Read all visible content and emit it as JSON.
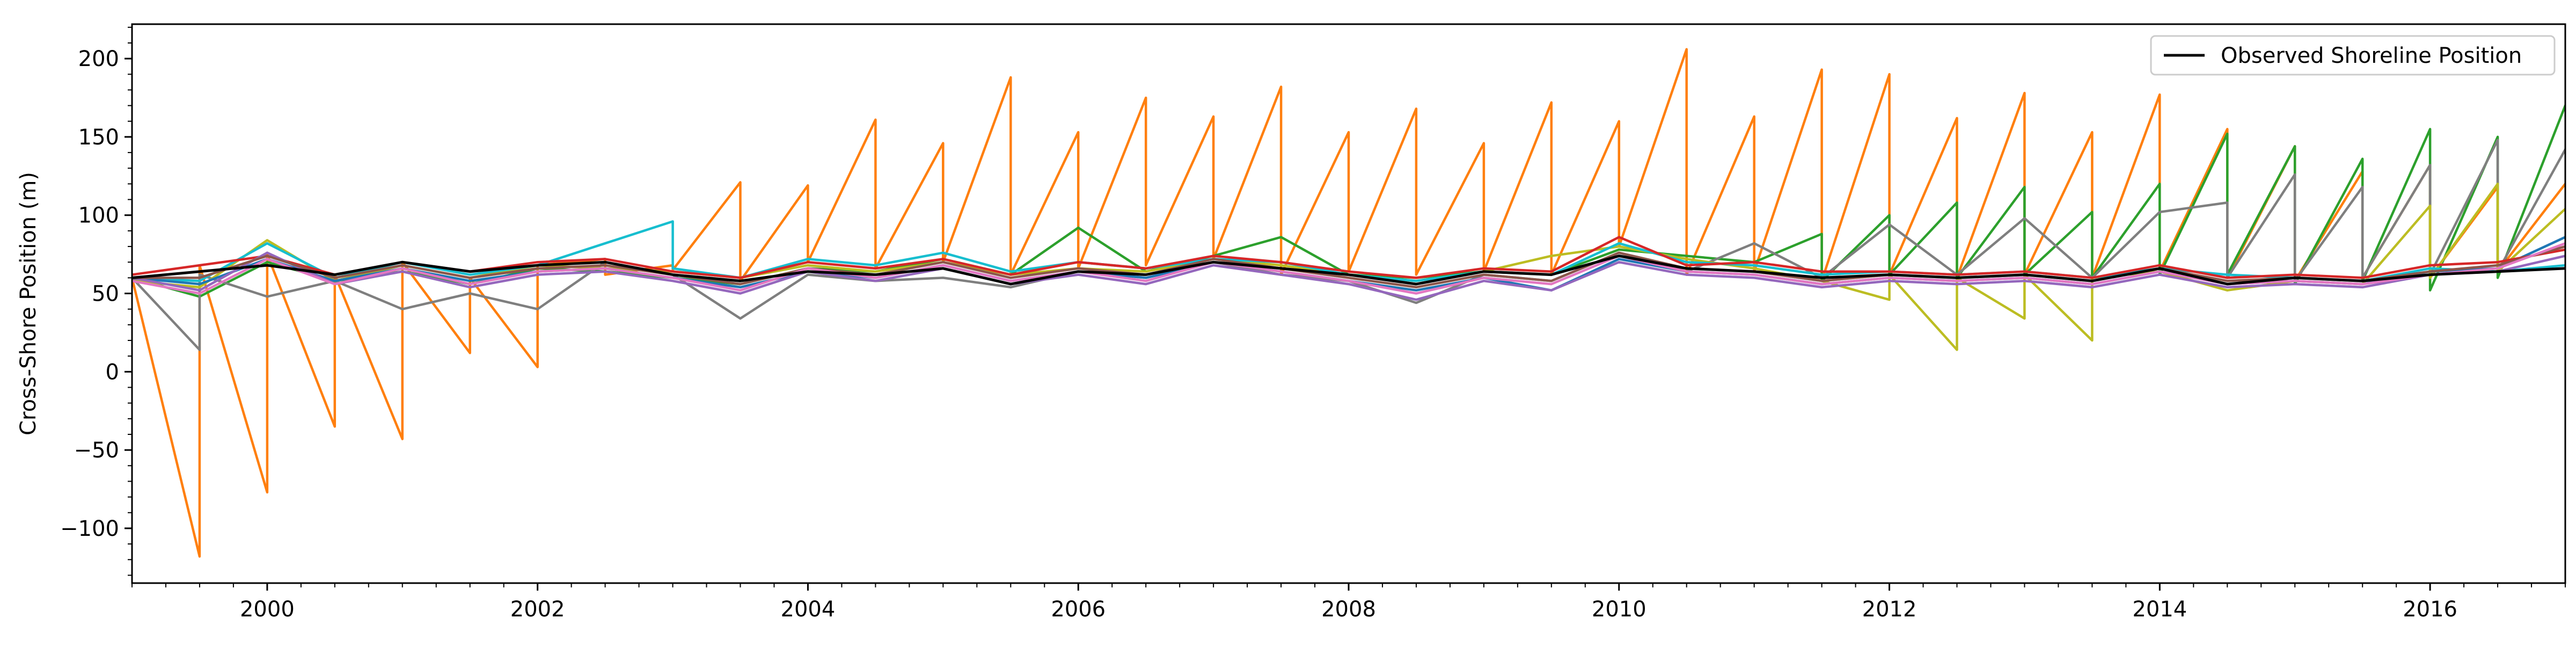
{
  "chart_data": {
    "type": "line",
    "title": "",
    "xlabel": "",
    "ylabel": "Cross-Shore Position (m)",
    "xlim": [
      1999.0,
      2017.0
    ],
    "ylim": [
      -135,
      222
    ],
    "x_ticks": [
      2000,
      2002,
      2004,
      2006,
      2008,
      2010,
      2012,
      2014,
      2016
    ],
    "x_tick_labels": [
      "2000",
      "2002",
      "2004",
      "2006",
      "2008",
      "2010",
      "2012",
      "2014",
      "2016"
    ],
    "y_ticks": [
      -100,
      -50,
      0,
      50,
      100,
      150,
      200
    ],
    "y_tick_labels": [
      "−100",
      "−50",
      "0",
      "50",
      "100",
      "150",
      "200"
    ],
    "grid": false,
    "legend_position": "top-right",
    "legend": [
      {
        "label": "Observed Shoreline Position",
        "color": "#000000"
      }
    ],
    "series": [
      {
        "name": "Observed Shoreline Position",
        "color": "#000000",
        "x": [
          1999.0,
          1999.5,
          2000.0,
          2000.5,
          2001.0,
          2001.5,
          2002.0,
          2002.5,
          2003.0,
          2003.5,
          2004.0,
          2004.5,
          2005.0,
          2005.5,
          2006.0,
          2006.5,
          2007.0,
          2007.5,
          2008.0,
          2008.5,
          2009.0,
          2009.5,
          2010.0,
          2010.5,
          2011.0,
          2011.5,
          2012.0,
          2012.5,
          2013.0,
          2013.5,
          2014.0,
          2014.5,
          2015.0,
          2015.5,
          2016.0,
          2016.5,
          2017.0
        ],
        "y": [
          60,
          64,
          68,
          62,
          70,
          64,
          68,
          70,
          62,
          58,
          64,
          62,
          66,
          56,
          64,
          62,
          70,
          66,
          62,
          56,
          64,
          62,
          74,
          66,
          64,
          60,
          62,
          60,
          62,
          58,
          66,
          56,
          60,
          58,
          62,
          64,
          66
        ]
      },
      {
        "name": "",
        "color": "#ff7f0e",
        "x": [
          1999.0,
          1999.5,
          1999.5,
          2000.0,
          2000.0,
          2000.5,
          2000.5,
          2001.0,
          2001.0,
          2001.5,
          2001.5,
          2002.0,
          2002.0,
          2002.5,
          2002.5,
          2003.0,
          2003.0,
          2003.5,
          2003.5,
          2004.0,
          2004.0,
          2004.5,
          2004.5,
          2005.0,
          2005.0,
          2005.5,
          2005.5,
          2006.0,
          2006.0,
          2006.5,
          2006.5,
          2007.0,
          2007.0,
          2007.5,
          2007.5,
          2008.0,
          2008.0,
          2008.5,
          2008.5,
          2009.0,
          2009.0,
          2009.5,
          2009.5,
          2010.0,
          2010.0,
          2010.5,
          2010.5,
          2011.0,
          2011.0,
          2011.5,
          2011.5,
          2012.0,
          2012.0,
          2012.5,
          2012.5,
          2013.0,
          2013.0,
          2013.5,
          2013.5,
          2014.0,
          2014.0,
          2014.5,
          2014.5,
          2015.0,
          2015.0,
          2015.5,
          2015.5,
          2016.0,
          2016.0,
          2016.5,
          2016.5,
          2017.0
        ],
        "y": [
          60,
          -118,
          68,
          -77,
          75,
          -35,
          62,
          -43,
          70,
          12,
          60,
          3,
          68,
          72,
          62,
          68,
          65,
          121,
          58,
          119,
          70,
          161,
          66,
          146,
          70,
          188,
          62,
          153,
          66,
          175,
          68,
          163,
          72,
          182,
          62,
          153,
          64,
          168,
          62,
          146,
          64,
          172,
          62,
          160,
          80,
          206,
          62,
          163,
          64,
          193,
          58,
          190,
          62,
          162,
          60,
          178,
          62,
          153,
          60,
          177,
          64,
          155,
          60,
          144,
          58,
          128,
          60,
          132,
          60,
          118,
          64,
          120
        ]
      },
      {
        "name": "",
        "color": "#2ca02c",
        "x": [
          1999.0,
          1999.5,
          2000.0,
          2000.5,
          2001.0,
          2001.5,
          2002.0,
          2002.5,
          2003.0,
          2003.5,
          2004.0,
          2004.5,
          2005.0,
          2005.5,
          2006.0,
          2006.5,
          2007.0,
          2007.5,
          2008.0,
          2008.5,
          2009.0,
          2009.5,
          2010.0,
          2010.5,
          2011.0,
          2011.5,
          2011.5,
          2012.0,
          2012.0,
          2012.5,
          2012.5,
          2013.0,
          2013.0,
          2013.5,
          2013.5,
          2014.0,
          2014.0,
          2014.5,
          2014.5,
          2015.0,
          2015.0,
          2015.5,
          2015.5,
          2016.0,
          2016.0,
          2016.5,
          2016.5,
          2017.0
        ],
        "y": [
          60,
          48,
          70,
          58,
          64,
          56,
          66,
          64,
          60,
          56,
          66,
          64,
          72,
          62,
          92,
          64,
          74,
          86,
          62,
          60,
          64,
          62,
          78,
          74,
          70,
          88,
          58,
          100,
          62,
          108,
          60,
          118,
          62,
          102,
          60,
          120,
          62,
          152,
          62,
          144,
          56,
          136,
          58,
          155,
          52,
          150,
          60,
          170
        ]
      },
      {
        "name": "",
        "color": "#7f7f7f",
        "x": [
          1999.0,
          1999.5,
          1999.5,
          2000.0,
          2000.5,
          2001.0,
          2001.5,
          2002.0,
          2002.5,
          2003.0,
          2003.5,
          2004.0,
          2004.5,
          2005.0,
          2005.5,
          2006.0,
          2006.5,
          2007.0,
          2007.5,
          2008.0,
          2008.5,
          2009.0,
          2009.5,
          2010.0,
          2010.5,
          2011.0,
          2011.5,
          2012.0,
          2012.5,
          2013.0,
          2013.5,
          2014.0,
          2014.5,
          2014.5,
          2015.0,
          2015.0,
          2015.5,
          2015.5,
          2016.0,
          2016.0,
          2016.5,
          2016.5,
          2017.0
        ],
        "y": [
          60,
          14,
          62,
          48,
          58,
          40,
          50,
          40,
          70,
          62,
          34,
          62,
          58,
          60,
          54,
          64,
          60,
          70,
          62,
          58,
          44,
          62,
          58,
          76,
          64,
          82,
          60,
          94,
          62,
          98,
          60,
          102,
          108,
          60,
          126,
          58,
          118,
          60,
          132,
          62,
          148,
          64,
          142
        ]
      },
      {
        "name": "",
        "color": "#bcbd22",
        "x": [
          1999.0,
          1999.5,
          2000.0,
          2000.5,
          2001.0,
          2001.5,
          2002.0,
          2002.5,
          2003.0,
          2003.5,
          2004.0,
          2004.5,
          2005.0,
          2005.5,
          2006.0,
          2006.5,
          2007.0,
          2007.5,
          2008.0,
          2008.5,
          2009.0,
          2009.5,
          2010.0,
          2010.5,
          2011.0,
          2011.5,
          2012.0,
          2012.0,
          2012.5,
          2012.5,
          2013.0,
          2013.0,
          2013.5,
          2013.5,
          2014.0,
          2014.5,
          2015.0,
          2015.5,
          2016.0,
          2016.0,
          2016.5,
          2016.5,
          2017.0
        ],
        "y": [
          58,
          54,
          84,
          58,
          68,
          60,
          68,
          66,
          64,
          60,
          68,
          64,
          70,
          62,
          66,
          64,
          72,
          68,
          62,
          58,
          64,
          74,
          80,
          72,
          66,
          58,
          46,
          62,
          14,
          60,
          34,
          62,
          20,
          60,
          64,
          52,
          58,
          56,
          106,
          60,
          120,
          64,
          104
        ]
      },
      {
        "name": "",
        "color": "#17becf",
        "x": [
          1999.0,
          1999.5,
          2000.0,
          2000.5,
          2001.0,
          2001.5,
          2002.0,
          2002.5,
          2003.0,
          2003.0,
          2003.5,
          2004.0,
          2004.5,
          2005.0,
          2005.5,
          2006.0,
          2006.5,
          2007.0,
          2007.5,
          2008.0,
          2008.5,
          2009.0,
          2009.5,
          2010.0,
          2010.5,
          2011.0,
          2011.5,
          2012.0,
          2012.5,
          2013.0,
          2013.5,
          2014.0,
          2014.5,
          2015.0,
          2015.5,
          2016.0,
          2016.5,
          2017.0
        ],
        "y": [
          60,
          58,
          82,
          60,
          70,
          62,
          68,
          82,
          96,
          66,
          60,
          72,
          68,
          76,
          64,
          70,
          66,
          72,
          70,
          62,
          58,
          64,
          62,
          82,
          70,
          68,
          62,
          64,
          62,
          64,
          60,
          66,
          62,
          60,
          58,
          66,
          64,
          68
        ]
      },
      {
        "name": "",
        "color": "#1f77b4",
        "x": [
          1999.0,
          1999.5,
          2000.0,
          2000.5,
          2001.0,
          2001.5,
          2002.0,
          2002.5,
          2003.0,
          2003.5,
          2004.0,
          2004.5,
          2005.0,
          2005.5,
          2006.0,
          2006.5,
          2007.0,
          2007.5,
          2008.0,
          2008.5,
          2009.0,
          2009.5,
          2010.0,
          2010.5,
          2011.0,
          2011.5,
          2012.0,
          2012.5,
          2013.0,
          2013.5,
          2014.0,
          2014.5,
          2015.0,
          2015.5,
          2016.0,
          2016.5,
          2017.0
        ],
        "y": [
          60,
          56,
          72,
          58,
          66,
          58,
          64,
          66,
          60,
          54,
          64,
          60,
          68,
          58,
          64,
          60,
          70,
          64,
          58,
          52,
          60,
          52,
          72,
          64,
          62,
          56,
          60,
          58,
          60,
          56,
          64,
          56,
          58,
          56,
          64,
          66,
          86
        ]
      },
      {
        "name": "",
        "color": "#d62728",
        "x": [
          1999.0,
          1999.5,
          2000.0,
          2000.5,
          2001.0,
          2001.5,
          2002.0,
          2002.5,
          2003.0,
          2003.5,
          2004.0,
          2004.5,
          2005.0,
          2005.5,
          2006.0,
          2006.5,
          2007.0,
          2007.5,
          2008.0,
          2008.5,
          2009.0,
          2009.5,
          2010.0,
          2010.5,
          2011.0,
          2011.5,
          2012.0,
          2012.5,
          2013.0,
          2013.5,
          2014.0,
          2014.5,
          2015.0,
          2015.5,
          2016.0,
          2016.5,
          2017.0
        ],
        "y": [
          62,
          68,
          74,
          62,
          70,
          64,
          70,
          72,
          64,
          60,
          70,
          66,
          72,
          62,
          70,
          66,
          74,
          70,
          64,
          60,
          66,
          64,
          86,
          68,
          70,
          64,
          64,
          62,
          64,
          60,
          68,
          60,
          62,
          60,
          68,
          70,
          78
        ]
      },
      {
        "name": "",
        "color": "#9467bd",
        "x": [
          1999.0,
          1999.5,
          2000.0,
          2000.5,
          2001.0,
          2001.5,
          2002.0,
          2002.5,
          2003.0,
          2003.5,
          2004.0,
          2004.5,
          2005.0,
          2005.5,
          2006.0,
          2006.5,
          2007.0,
          2007.5,
          2008.0,
          2008.5,
          2009.0,
          2009.5,
          2010.0,
          2010.5,
          2011.0,
          2011.5,
          2012.0,
          2012.5,
          2013.0,
          2013.5,
          2014.0,
          2014.5,
          2015.0,
          2015.5,
          2016.0,
          2016.5,
          2017.0
        ],
        "y": [
          60,
          52,
          76,
          56,
          64,
          54,
          62,
          64,
          58,
          50,
          64,
          58,
          66,
          56,
          62,
          56,
          68,
          62,
          56,
          46,
          58,
          52,
          70,
          62,
          60,
          54,
          58,
          56,
          58,
          54,
          62,
          54,
          56,
          54,
          62,
          64,
          74
        ]
      },
      {
        "name": "",
        "color": "#8c564b",
        "x": [
          1999.0,
          1999.5,
          2000.0,
          2000.5,
          2001.0,
          2001.5,
          2002.0,
          2002.5,
          2003.0,
          2003.5,
          2004.0,
          2004.5,
          2005.0,
          2005.5,
          2006.0,
          2006.5,
          2007.0,
          2007.5,
          2008.0,
          2008.5,
          2009.0,
          2009.5,
          2010.0,
          2010.5,
          2011.0,
          2011.5,
          2012.0,
          2012.5,
          2013.0,
          2013.5,
          2014.0,
          2014.5,
          2015.0,
          2015.5,
          2016.0,
          2016.5,
          2017.0
        ],
        "y": [
          60,
          60,
          74,
          60,
          68,
          60,
          66,
          68,
          62,
          56,
          66,
          62,
          70,
          60,
          66,
          62,
          72,
          66,
          60,
          54,
          62,
          58,
          76,
          66,
          64,
          58,
          62,
          60,
          62,
          58,
          66,
          58,
          60,
          58,
          64,
          68,
          80
        ]
      },
      {
        "name": "",
        "color": "#e377c2",
        "x": [
          1999.0,
          1999.5,
          2000.0,
          2000.5,
          2001.0,
          2001.5,
          2002.0,
          2002.5,
          2003.0,
          2003.5,
          2004.0,
          2004.5,
          2005.0,
          2005.5,
          2006.0,
          2006.5,
          2007.0,
          2007.5,
          2008.0,
          2008.5,
          2009.0,
          2009.5,
          2010.0,
          2010.5,
          2011.0,
          2011.5,
          2012.0,
          2012.5,
          2013.0,
          2013.5,
          2014.0,
          2014.5,
          2015.0,
          2015.5,
          2016.0,
          2016.5,
          2017.0
        ],
        "y": [
          58,
          50,
          72,
          56,
          66,
          56,
          64,
          66,
          60,
          52,
          66,
          60,
          68,
          58,
          64,
          58,
          70,
          64,
          58,
          50,
          60,
          56,
          74,
          64,
          62,
          56,
          60,
          58,
          60,
          56,
          64,
          56,
          58,
          56,
          62,
          66,
          82
        ]
      }
    ]
  }
}
